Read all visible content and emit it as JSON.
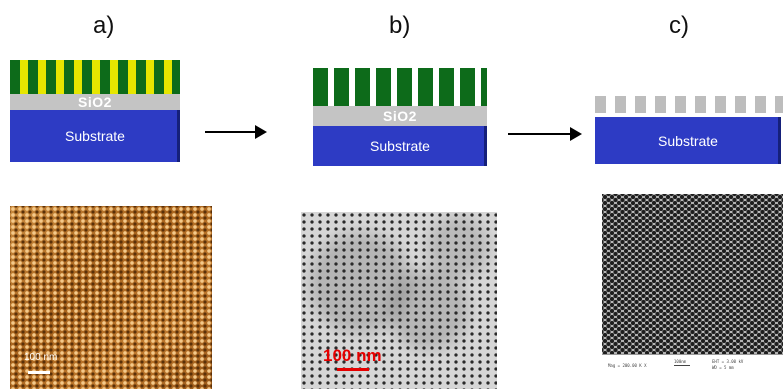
{
  "panels": {
    "a": {
      "label": "a)",
      "oxide_label": "SiO2",
      "substrate_label": "Substrate",
      "scale_text": "100 nm"
    },
    "b": {
      "label": "b)",
      "oxide_label": "SiO2",
      "substrate_label": "Substrate",
      "scale_text": "100 nm"
    },
    "c": {
      "label": "c)",
      "substrate_label": "Substrate",
      "sem_info": {
        "mag": "Mag = 200.00 K X",
        "bar": "100nm",
        "eht": "EHT = 3.00 kV",
        "wd": "WD = 5 mm"
      }
    }
  },
  "colors": {
    "substrate": "#2d3bc4",
    "oxide": "#c4c4c4",
    "polymer_block_a": "#0d6b1a",
    "polymer_block_b": "#e6e600",
    "scale_bar_b": "#e60000"
  }
}
